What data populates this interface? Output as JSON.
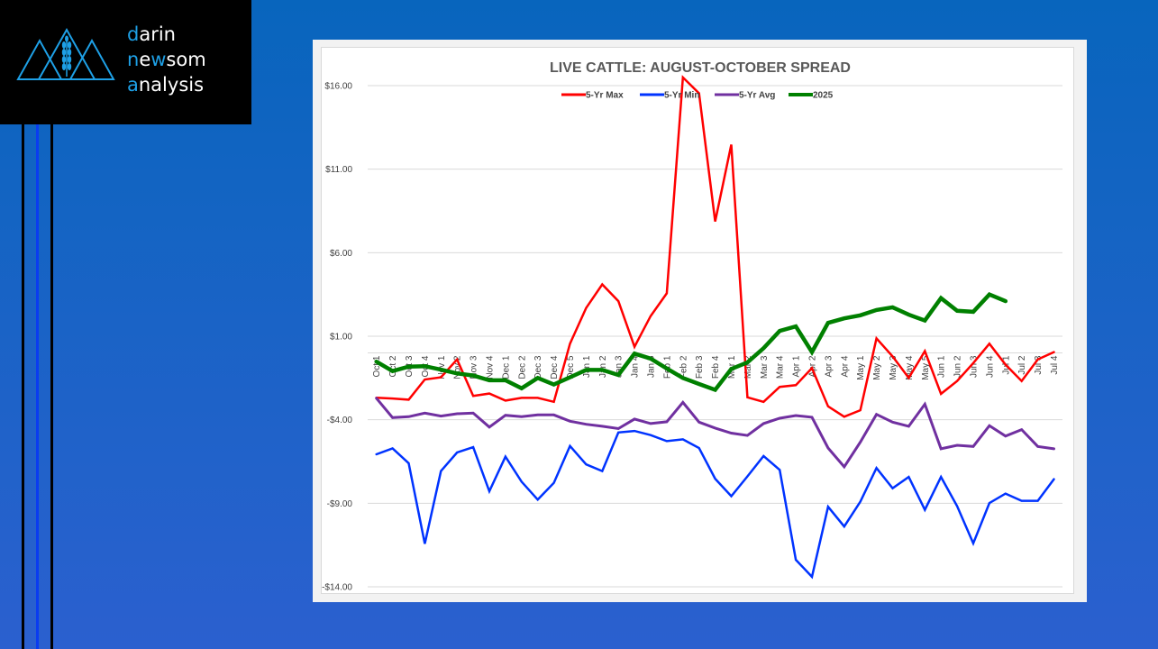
{
  "logo": {
    "lines": [
      {
        "first": "d",
        "rest": "arin"
      },
      {
        "first": "n",
        "mid1": "e",
        "hl": "w",
        "rest": "som"
      },
      {
        "first": "a",
        "rest": "nalysis"
      }
    ],
    "icon": "mountains-wheat-icon",
    "accent_color": "#1ea0e6"
  },
  "chart_data": {
    "type": "line",
    "title": "LIVE CATTLE: AUGUST-OCTOBER SPREAD",
    "xlabel": "",
    "ylabel": "",
    "ylim": [
      -14,
      16
    ],
    "yticks": [
      16,
      11,
      6,
      1,
      -4,
      -9,
      -14
    ],
    "ytick_labels": [
      "$16.00",
      "$11.00",
      "$6.00",
      "$1.00",
      "-$4.00",
      "-$9.00",
      "-$14.00"
    ],
    "grid": true,
    "legend_position": "top",
    "categories": [
      "Oct 1",
      "Oct 2",
      "Oct 3",
      "Oct 4",
      "Nov 1",
      "Nov 2",
      "Nov 3",
      "Nov 4",
      "Dec 1",
      "Dec 2",
      "Dec 3",
      "Dec 4",
      "Dec 5",
      "Jan 1",
      "Jan 2",
      "Jan 3",
      "Jan 4",
      "Jan 5",
      "Feb 1",
      "Feb 2",
      "Feb 3",
      "Feb 4",
      "Mar 1",
      "Mar 2",
      "Mar 3",
      "Mar 4",
      "Apr 1",
      "Apr 2",
      "Apr 3",
      "Apr 4",
      "May 1",
      "May 2",
      "May 3",
      "May 4",
      "May 5",
      "Jun 1",
      "Jun 2",
      "Jun 3",
      "Jun 4",
      "Jul 1",
      "Jul 2",
      "Jul 3",
      "Jul 4"
    ],
    "series": [
      {
        "name": "5-Yr Max",
        "color": "#ff0000",
        "width": 2.5,
        "values": [
          -2.68,
          -2.73,
          -2.8,
          -1.59,
          -1.46,
          -0.39,
          -2.57,
          -2.43,
          -2.85,
          -2.69,
          -2.69,
          -2.93,
          0.55,
          2.69,
          4.1,
          3.1,
          0.37,
          2.21,
          3.57,
          16.49,
          15.54,
          7.87,
          12.47,
          -2.66,
          -2.93,
          -2.03,
          -1.93,
          -0.91,
          -3.2,
          -3.82,
          -3.43,
          0.87,
          -0.21,
          -1.5,
          0.11,
          -2.45,
          -1.68,
          -0.61,
          0.55,
          -0.7,
          -1.68,
          -0.39,
          0.05
        ]
      },
      {
        "name": "5-Yr Min",
        "color": "#0033ff",
        "width": 2.5,
        "values": [
          -6.07,
          -5.71,
          -6.6,
          -11.42,
          -7.07,
          -5.96,
          -5.64,
          -8.28,
          -6.21,
          -7.71,
          -8.78,
          -7.78,
          -5.57,
          -6.67,
          -7.07,
          -4.76,
          -4.67,
          -4.92,
          -5.28,
          -5.17,
          -5.69,
          -7.53,
          -8.58,
          -7.39,
          -6.17,
          -7.0,
          -12.38,
          -13.4,
          -9.21,
          -10.39,
          -8.9,
          -6.89,
          -8.1,
          -7.42,
          -9.39,
          -7.42,
          -9.17,
          -11.4,
          -8.99,
          -8.42,
          -8.85,
          -8.85,
          -7.56
        ]
      },
      {
        "name": "5-Yr Avg",
        "color": "#7030a0",
        "width": 3,
        "values": [
          -2.71,
          -3.87,
          -3.82,
          -3.6,
          -3.78,
          -3.64,
          -3.6,
          -4.44,
          -3.73,
          -3.82,
          -3.71,
          -3.71,
          -4.09,
          -4.27,
          -4.39,
          -4.53,
          -3.96,
          -4.23,
          -4.12,
          -2.96,
          -4.14,
          -4.5,
          -4.8,
          -4.94,
          -4.23,
          -3.91,
          -3.75,
          -3.85,
          -5.69,
          -6.82,
          -5.34,
          -3.68,
          -4.14,
          -4.39,
          -3.07,
          -5.74,
          -5.53,
          -5.6,
          -4.35,
          -4.98,
          -4.59,
          -5.6,
          -5.74
        ]
      },
      {
        "name": "2025",
        "color": "#008000",
        "width": 4.5,
        "values": [
          -0.52,
          -1.09,
          -0.82,
          -0.79,
          -1.0,
          -1.23,
          -1.35,
          -1.64,
          -1.64,
          -2.12,
          -1.5,
          -1.89,
          -1.46,
          -1.02,
          -1.02,
          -1.32,
          -0.04,
          -0.34,
          -0.93,
          -1.5,
          -1.86,
          -2.21,
          -0.96,
          -0.57,
          0.28,
          1.32,
          1.59,
          0.05,
          1.8,
          2.07,
          2.25,
          2.57,
          2.73,
          2.29,
          1.94,
          3.28,
          2.52,
          2.46,
          3.5,
          3.1,
          null,
          null,
          null
        ]
      }
    ]
  }
}
